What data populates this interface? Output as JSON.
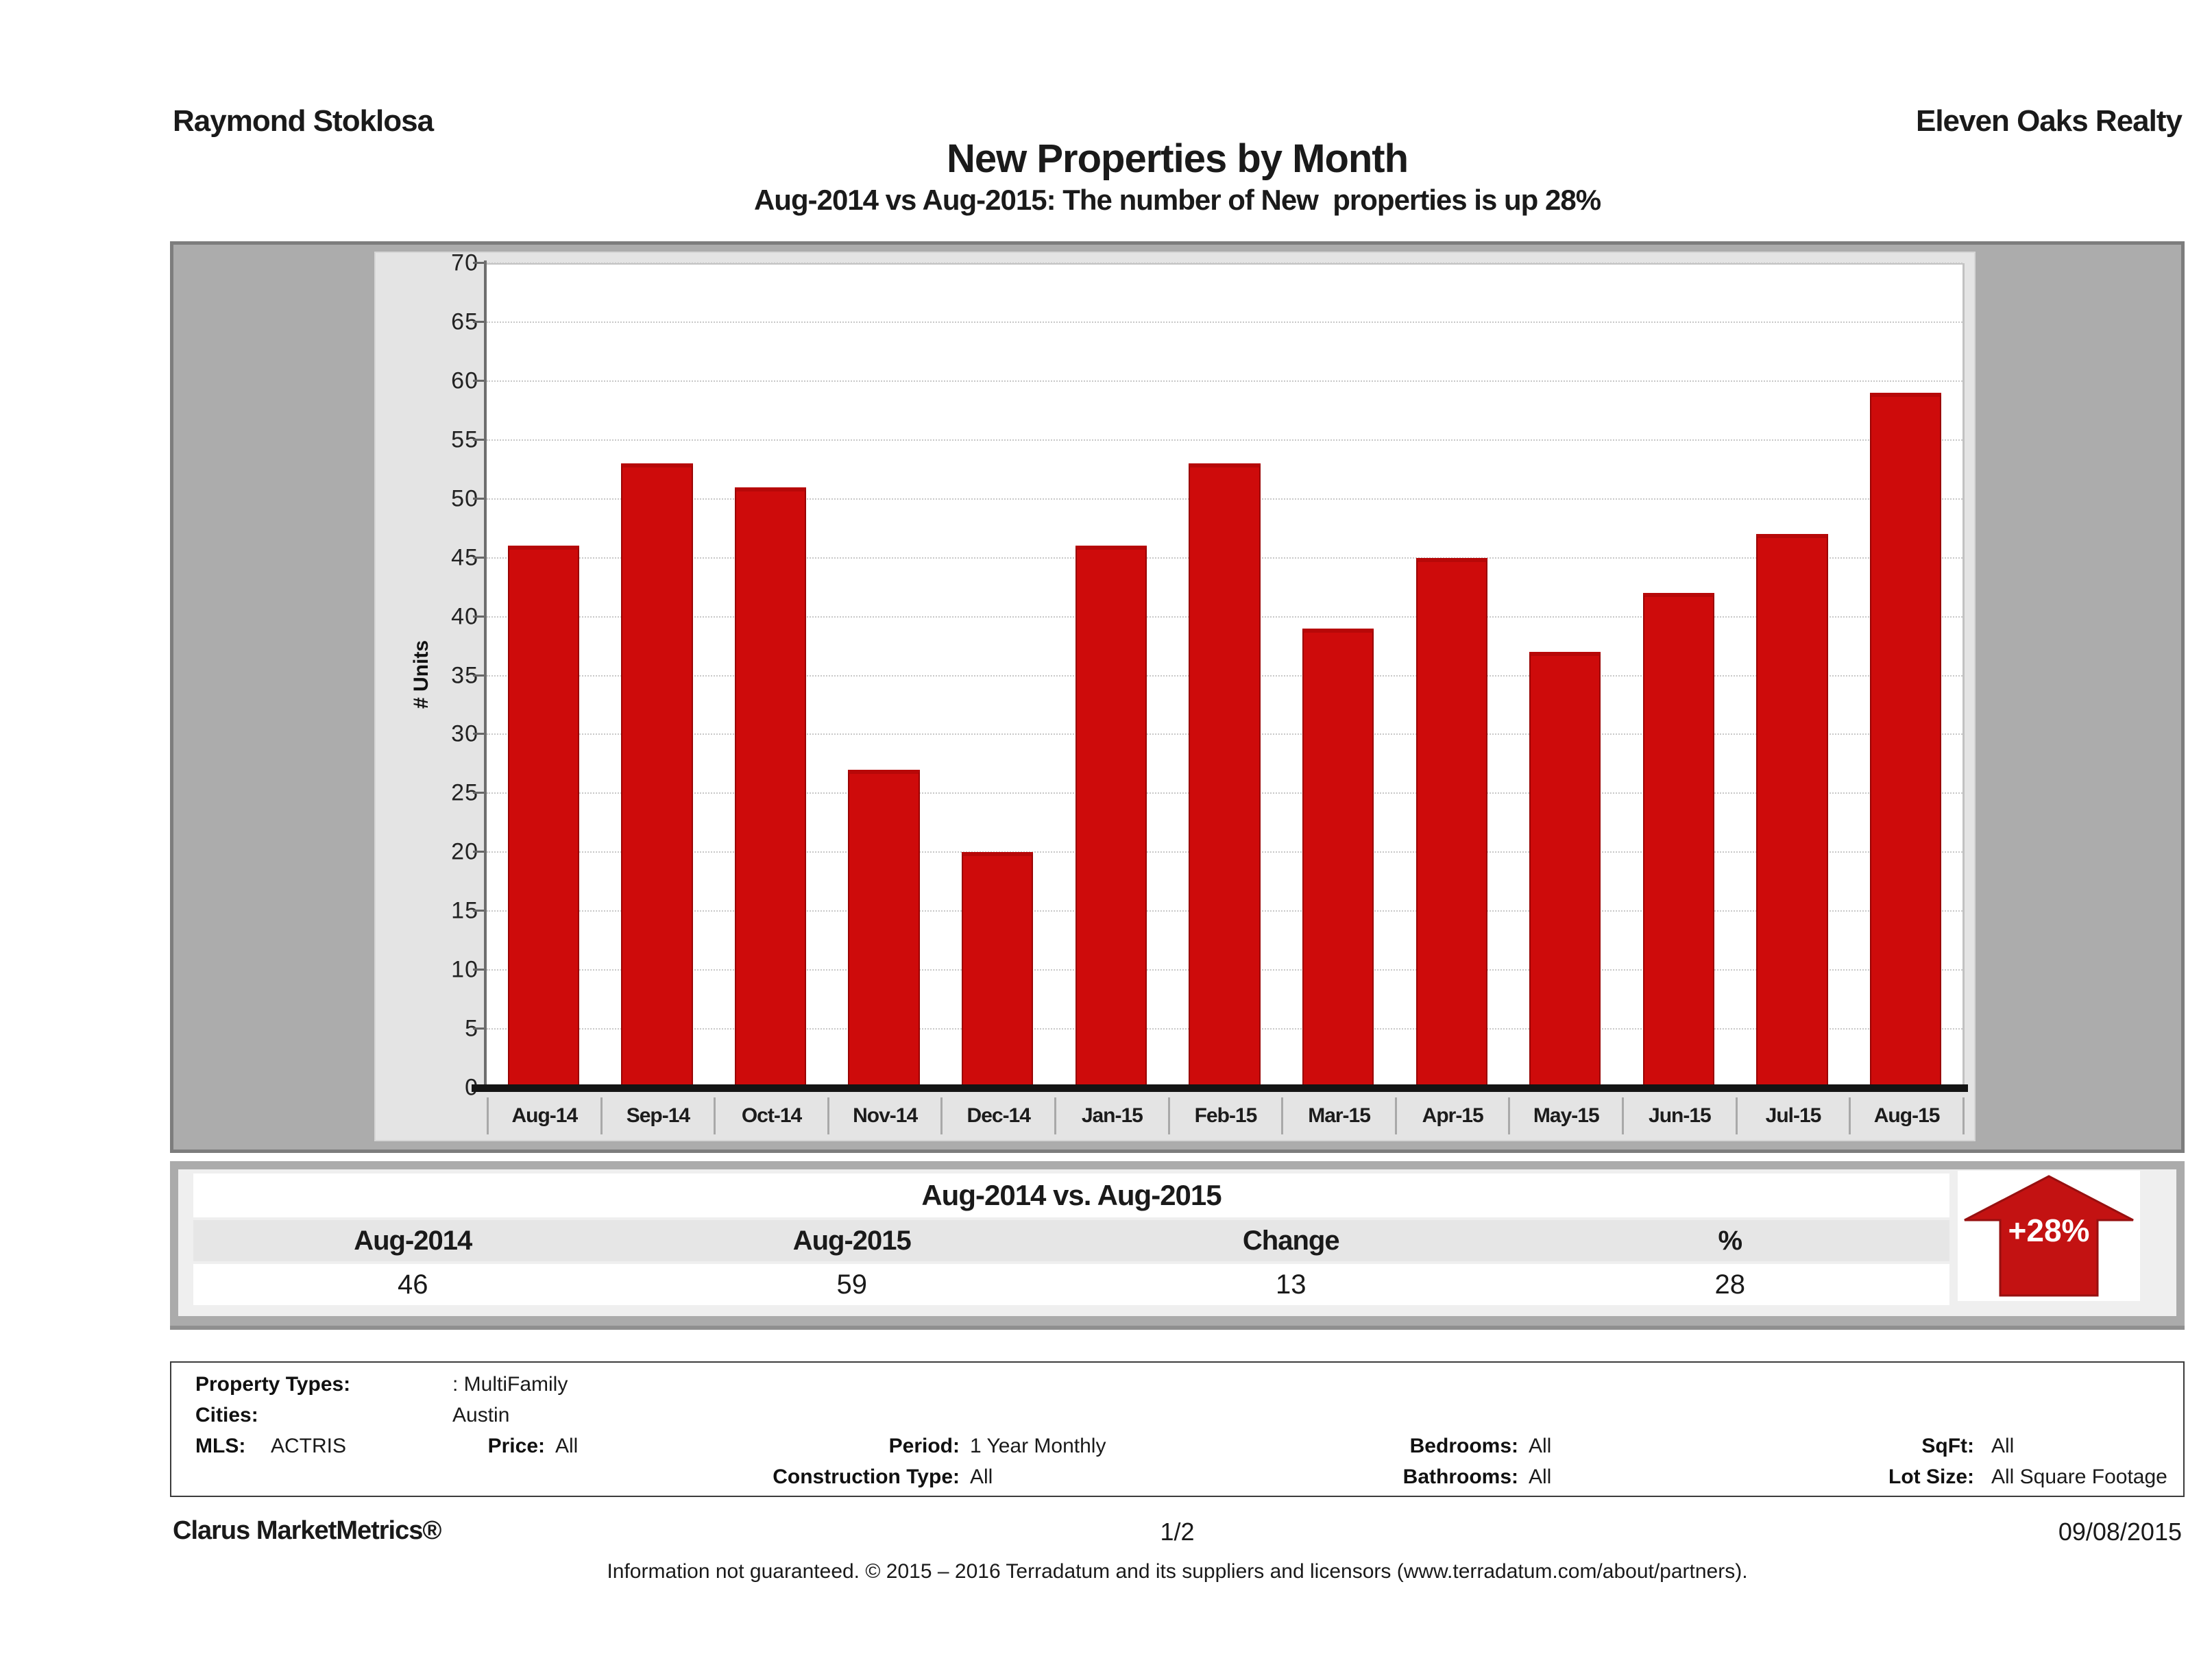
{
  "header": {
    "agent": "Raymond Stoklosa",
    "company": "Eleven Oaks Realty"
  },
  "title": "New Properties by Month",
  "subtitle": "Aug-2014 vs Aug-2015: The number of New  properties is up 28%",
  "chart_data": {
    "type": "bar",
    "categories": [
      "Aug-14",
      "Sep-14",
      "Oct-14",
      "Nov-14",
      "Dec-14",
      "Jan-15",
      "Feb-15",
      "Mar-15",
      "Apr-15",
      "May-15",
      "Jun-15",
      "Jul-15",
      "Aug-15"
    ],
    "values": [
      46,
      53,
      51,
      27,
      20,
      46,
      53,
      39,
      45,
      37,
      42,
      47,
      59
    ],
    "title": "New Properties by Month",
    "xlabel": "",
    "ylabel": "# Units",
    "ylim": [
      0,
      70
    ],
    "ytick_step": 5,
    "grid": true,
    "bar_color": "#CE0B0B"
  },
  "comparison_table": {
    "title": "Aug-2014 vs. Aug-2015",
    "columns": [
      "Aug-2014",
      "Aug-2015",
      "Change",
      "%"
    ],
    "values": [
      "46",
      "59",
      "13",
      "28"
    ],
    "badge": "+28%",
    "badge_color": "#C31212"
  },
  "parameters": {
    "property_types": {
      "label": "Property Types:",
      "value": ": MultiFamily"
    },
    "cities": {
      "label": "Cities:",
      "value": "Austin"
    },
    "mls": {
      "label": "MLS:",
      "value": "ACTRIS"
    },
    "price": {
      "label": "Price:",
      "value": "All"
    },
    "period": {
      "label": "Period:",
      "value": "1 Year Monthly"
    },
    "construction_type": {
      "label": "Construction Type:",
      "value": "All"
    },
    "bedrooms": {
      "label": "Bedrooms:",
      "value": "All"
    },
    "bathrooms": {
      "label": "Bathrooms:",
      "value": "All"
    },
    "sqft": {
      "label": "SqFt:",
      "value": "All"
    },
    "lot_size": {
      "label": "Lot Size:",
      "value": "All Square Footage"
    }
  },
  "footer": {
    "brand": "Clarus MarketMetrics®",
    "page": "1/2",
    "date": "09/08/2015",
    "disclaimer": "Information not guaranteed. © 2015 – 2016 Terradatum and its suppliers and licensors (www.terradatum.com/about/partners)."
  }
}
